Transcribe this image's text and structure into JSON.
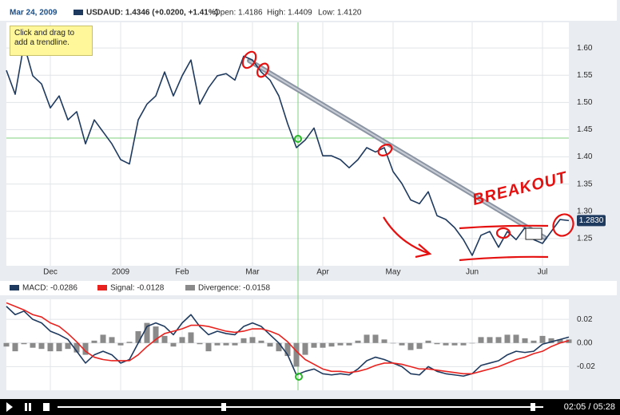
{
  "chart_data": [
    {
      "type": "line",
      "date": "Mar 24, 2009",
      "stats": [
        "Open: 1.4186",
        "High: 1.4409",
        "Low: 1.4120"
      ],
      "categories": [
        null,
        null,
        null,
        null,
        null,
        "Dec",
        null,
        null,
        null,
        null,
        null,
        null,
        null,
        "2009",
        null,
        null,
        null,
        null,
        null,
        null,
        "Feb",
        null,
        null,
        null,
        null,
        null,
        null,
        null,
        "Mar",
        null,
        null,
        null,
        null,
        null,
        null,
        null,
        "Apr",
        null,
        null,
        null,
        null,
        null,
        null,
        null,
        "May",
        null,
        null,
        null,
        null,
        null,
        null,
        null,
        null,
        "Jun",
        null,
        null,
        null,
        null,
        null,
        null,
        null,
        "Jul",
        null,
        null,
        null
      ],
      "series": [
        {
          "name": "USDAUD: 1.4346 (+0.0200, +1.41%)",
          "color": "#1f3a5f",
          "values": [
            1.559,
            1.515,
            1.607,
            1.549,
            1.534,
            1.49,
            1.512,
            1.468,
            1.483,
            1.424,
            1.468,
            1.446,
            1.424,
            1.395,
            1.387,
            1.468,
            1.497,
            1.512,
            1.556,
            1.512,
            1.549,
            1.578,
            1.497,
            1.527,
            1.549,
            1.553,
            1.541,
            1.585,
            1.578,
            1.556,
            1.541,
            1.512,
            1.461,
            1.417,
            1.431,
            1.453,
            1.402,
            1.402,
            1.395,
            1.38,
            1.395,
            1.417,
            1.409,
            1.417,
            1.373,
            1.351,
            1.321,
            1.314,
            1.336,
            1.292,
            1.285,
            1.27,
            1.248,
            1.219,
            1.256,
            1.263,
            1.234,
            1.263,
            1.248,
            1.27,
            1.248,
            1.241,
            1.263,
            1.285,
            1.283
          ]
        }
      ],
      "ylim": [
        1.2,
        1.675
      ],
      "yticks": [
        1.25,
        {
          "value": 1.3,
          "label": "1.30"
        },
        1.35,
        {
          "value": 1.4,
          "label": "1.40"
        },
        1.45,
        {
          "value": 1.5,
          "label": "1.50"
        },
        1.55,
        {
          "value": 1.6,
          "label": "1.60"
        }
      ],
      "grid": true,
      "last_price": {
        "value": 1.283,
        "label": "1.2830"
      },
      "tooltip": "Click and drag to add a trendline.",
      "annotation": "BREAKOUT"
    },
    {
      "type": "combo",
      "series": [
        {
          "name": "MACD: -0.0286",
          "color": "#1f3a5f",
          "kind": "line",
          "values": [
            0.031,
            0.024,
            0.027,
            0.02,
            0.017,
            0.01,
            0.007,
            0.003,
            -0.007,
            -0.017,
            -0.01,
            -0.007,
            -0.01,
            -0.017,
            -0.014,
            0,
            0.014,
            0.017,
            0.014,
            0.007,
            0.017,
            0.024,
            0.014,
            0.007,
            0.01,
            0.008,
            0.007,
            0.014,
            0.017,
            0.014,
            0.007,
            0,
            -0.01,
            -0.027,
            -0.024,
            -0.022,
            -0.026,
            -0.027,
            -0.026,
            -0.027,
            -0.022,
            -0.015,
            -0.012,
            -0.014,
            -0.017,
            -0.02,
            -0.026,
            -0.027,
            -0.02,
            -0.024,
            -0.026,
            -0.027,
            -0.028,
            -0.026,
            -0.019,
            -0.017,
            -0.015,
            -0.01,
            -0.007,
            -0.008,
            -0.007,
            -0.001,
            0.001,
            0.003,
            0.005
          ]
        },
        {
          "name": "Signal: -0.0128",
          "color": "#e8231f",
          "kind": "line",
          "values": [
            0.034,
            0.031,
            0.028,
            0.024,
            0.022,
            0.017,
            0.014,
            0.008,
            0.001,
            -0.007,
            -0.012,
            -0.014,
            -0.015,
            -0.015,
            -0.015,
            -0.01,
            -0.003,
            0.003,
            0.008,
            0.01,
            0.012,
            0.015,
            0.015,
            0.014,
            0.012,
            0.01,
            0.009,
            0.01,
            0.012,
            0.012,
            0.01,
            0.007,
            0.001,
            -0.007,
            -0.014,
            -0.018,
            -0.022,
            -0.024,
            -0.024,
            -0.025,
            -0.024,
            -0.022,
            -0.019,
            -0.017,
            -0.017,
            -0.018,
            -0.02,
            -0.022,
            -0.022,
            -0.023,
            -0.024,
            -0.025,
            -0.026,
            -0.026,
            -0.024,
            -0.022,
            -0.02,
            -0.017,
            -0.014,
            -0.012,
            -0.009,
            -0.007,
            -0.003,
            0,
            0.002
          ]
        },
        {
          "name": "Divergence: -0.0158",
          "color": "#8a8a8a",
          "kind": "bar",
          "values": [
            -0.003,
            -0.007,
            -0.001,
            -0.004,
            -0.005,
            -0.007,
            -0.007,
            -0.005,
            -0.008,
            -0.01,
            0.002,
            0.007,
            0.005,
            -0.002,
            0.001,
            0.01,
            0.017,
            0.014,
            0.006,
            -0.003,
            0.005,
            0.009,
            -0.001,
            -0.007,
            -0.002,
            -0.002,
            -0.002,
            0.004,
            0.005,
            0.002,
            -0.003,
            -0.007,
            -0.011,
            -0.02,
            -0.01,
            -0.004,
            -0.004,
            -0.003,
            -0.002,
            -0.002,
            0.002,
            0.007,
            0.007,
            0.003,
            0,
            -0.002,
            -0.006,
            -0.005,
            0.002,
            -0.001,
            -0.002,
            -0.002,
            -0.002,
            0,
            0.005,
            0.005,
            0.005,
            0.007,
            0.007,
            0.004,
            0.002,
            0.006,
            0.004,
            0.003,
            0.003
          ]
        }
      ],
      "ylim": [
        -0.04,
        0.037
      ],
      "yticks": [
        -0.02,
        {
          "value": 0,
          "label": "0.00"
        },
        0.02
      ],
      "grid": true
    }
  ],
  "player": {
    "time": "02:05 / 05:28"
  }
}
